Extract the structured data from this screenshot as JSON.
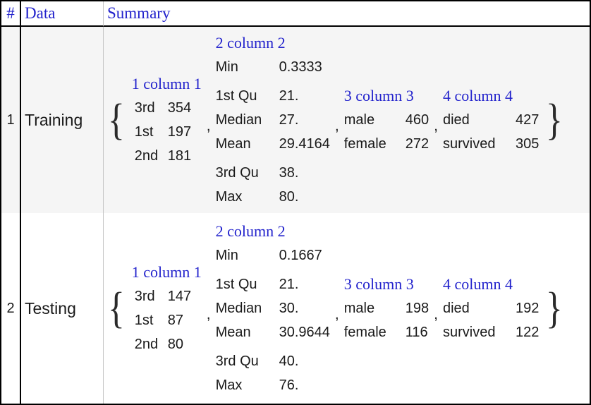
{
  "header": {
    "index_label": "#",
    "data_label": "Data",
    "summary_label": "Summary"
  },
  "punct": {
    "open": "{",
    "close": "}",
    "comma": ","
  },
  "colors": {
    "accent_blue": "#2222cc",
    "text": "#1a1a1a",
    "row1_bg": "#f5f5f5",
    "row2_bg": "#ffffff",
    "grid_line": "#c5c5c5",
    "border": "#000000"
  },
  "rows": [
    {
      "index": "1",
      "data": "Training",
      "tables": [
        {
          "title": "1 column 1",
          "groups": [
            [
              [
                "3rd",
                "354"
              ],
              [
                "1st",
                "197"
              ],
              [
                "2nd",
                "181"
              ]
            ]
          ]
        },
        {
          "title": "2 column 2",
          "groups": [
            [
              [
                "Min",
                "0.3333"
              ]
            ],
            [
              [
                "1st Qu",
                "21."
              ],
              [
                "Median",
                "27."
              ],
              [
                "Mean",
                "29.4164"
              ]
            ],
            [
              [
                "3rd Qu",
                "38."
              ],
              [
                "Max",
                "80."
              ]
            ]
          ]
        },
        {
          "title": "3 column 3",
          "groups": [
            [
              [
                "male",
                "460"
              ],
              [
                "female",
                "272"
              ]
            ]
          ]
        },
        {
          "title": "4 column 4",
          "groups": [
            [
              [
                "died",
                "427"
              ],
              [
                "survived",
                "305"
              ]
            ]
          ]
        }
      ]
    },
    {
      "index": "2",
      "data": "Testing",
      "tables": [
        {
          "title": "1 column 1",
          "groups": [
            [
              [
                "3rd",
                "147"
              ],
              [
                "1st",
                "87"
              ],
              [
                "2nd",
                "80"
              ]
            ]
          ]
        },
        {
          "title": "2 column 2",
          "groups": [
            [
              [
                "Min",
                "0.1667"
              ]
            ],
            [
              [
                "1st Qu",
                "21."
              ],
              [
                "Median",
                "30."
              ],
              [
                "Mean",
                "30.9644"
              ]
            ],
            [
              [
                "3rd Qu",
                "40."
              ],
              [
                "Max",
                "76."
              ]
            ]
          ]
        },
        {
          "title": "3 column 3",
          "groups": [
            [
              [
                "male",
                "198"
              ],
              [
                "female",
                "116"
              ]
            ]
          ]
        },
        {
          "title": "4 column 4",
          "groups": [
            [
              [
                "died",
                "192"
              ],
              [
                "survived",
                "122"
              ]
            ]
          ]
        }
      ]
    }
  ]
}
